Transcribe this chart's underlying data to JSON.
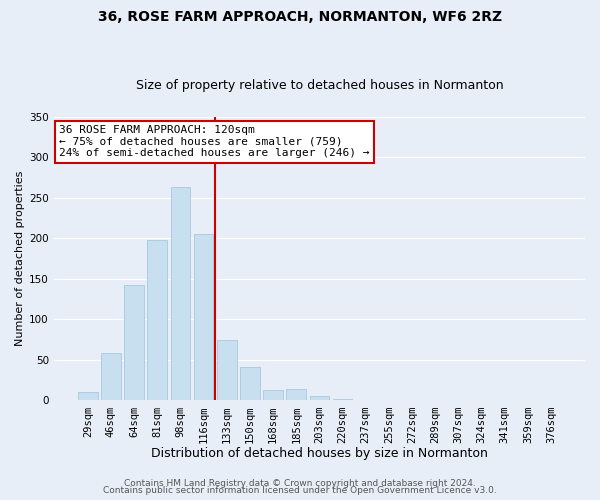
{
  "title": "36, ROSE FARM APPROACH, NORMANTON, WF6 2RZ",
  "subtitle": "Size of property relative to detached houses in Normanton",
  "xlabel": "Distribution of detached houses by size in Normanton",
  "ylabel": "Number of detached properties",
  "bar_labels": [
    "29sqm",
    "46sqm",
    "64sqm",
    "81sqm",
    "98sqm",
    "116sqm",
    "133sqm",
    "150sqm",
    "168sqm",
    "185sqm",
    "203sqm",
    "220sqm",
    "237sqm",
    "255sqm",
    "272sqm",
    "289sqm",
    "307sqm",
    "324sqm",
    "341sqm",
    "359sqm",
    "376sqm"
  ],
  "bar_heights": [
    10,
    58,
    143,
    198,
    263,
    205,
    75,
    41,
    13,
    14,
    6,
    2,
    0,
    0,
    0,
    0,
    0,
    0,
    0,
    0,
    1
  ],
  "bar_color": "#c8dff0",
  "bar_edge_color": "#a8c8e0",
  "vline_color": "#cc0000",
  "vline_x": 5.5,
  "ylim": [
    0,
    350
  ],
  "yticks": [
    0,
    50,
    100,
    150,
    200,
    250,
    300,
    350
  ],
  "annotation_text": "36 ROSE FARM APPROACH: 120sqm\n← 75% of detached houses are smaller (759)\n24% of semi-detached houses are larger (246) →",
  "annotation_box_color": "#ffffff",
  "annotation_box_edge": "#cc0000",
  "footer_line1": "Contains HM Land Registry data © Crown copyright and database right 2024.",
  "footer_line2": "Contains public sector information licensed under the Open Government Licence v3.0.",
  "background_color": "#e8eef8",
  "plot_bg_color": "#e8eef8",
  "title_fontsize": 10,
  "subtitle_fontsize": 9,
  "xlabel_fontsize": 9,
  "ylabel_fontsize": 8,
  "tick_fontsize": 7.5,
  "footer_fontsize": 6.5,
  "annotation_fontsize": 8
}
